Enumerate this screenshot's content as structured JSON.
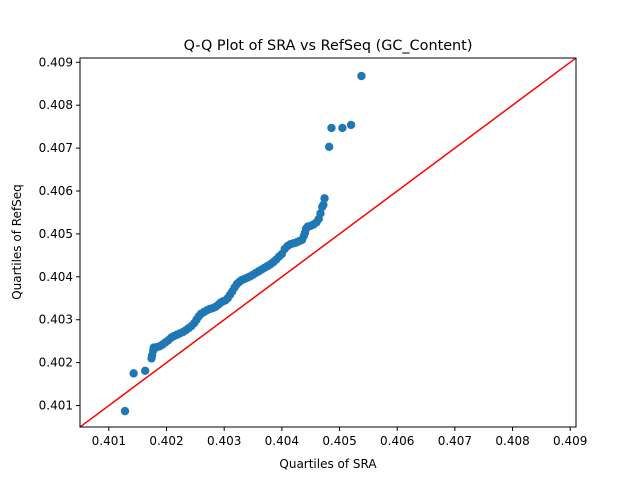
{
  "chart_data": {
    "type": "scatter",
    "title": "Q-Q Plot of SRA vs RefSeq (GC_Content)",
    "xlabel": "Quartiles of SRA",
    "ylabel": "Quartiles of RefSeq",
    "xlim": [
      0.4005,
      0.4091
    ],
    "ylim": [
      0.4005,
      0.4091
    ],
    "xticks": [
      "0.401",
      "0.402",
      "0.403",
      "0.404",
      "0.405",
      "0.406",
      "0.407",
      "0.408",
      "0.409"
    ],
    "yticks": [
      "0.401",
      "0.402",
      "0.403",
      "0.404",
      "0.405",
      "0.406",
      "0.407",
      "0.408",
      "0.409"
    ],
    "grid": false,
    "legend": "none",
    "reference_line": {
      "from": [
        0.4005,
        0.4005
      ],
      "to": [
        0.4091,
        0.4091
      ],
      "color": "#ff0000"
    },
    "marker_color": "#1f77b4",
    "points": [
      [
        0.40128,
        0.40087
      ],
      [
        0.40143,
        0.40175
      ],
      [
        0.40163,
        0.40181
      ],
      [
        0.40174,
        0.4021
      ],
      [
        0.40175,
        0.40217
      ],
      [
        0.40177,
        0.40228
      ],
      [
        0.40178,
        0.40235
      ],
      [
        0.40183,
        0.40236
      ],
      [
        0.40188,
        0.40238
      ],
      [
        0.40193,
        0.40242
      ],
      [
        0.40198,
        0.40247
      ],
      [
        0.40203,
        0.40252
      ],
      [
        0.40208,
        0.40258
      ],
      [
        0.40213,
        0.40262
      ],
      [
        0.40218,
        0.40265
      ],
      [
        0.40223,
        0.40268
      ],
      [
        0.40228,
        0.40271
      ],
      [
        0.40233,
        0.40275
      ],
      [
        0.40238,
        0.4028
      ],
      [
        0.40243,
        0.40285
      ],
      [
        0.40248,
        0.40292
      ],
      [
        0.40252,
        0.403
      ],
      [
        0.40256,
        0.40308
      ],
      [
        0.4026,
        0.40314
      ],
      [
        0.40265,
        0.40318
      ],
      [
        0.4027,
        0.40322
      ],
      [
        0.40275,
        0.40325
      ],
      [
        0.4028,
        0.40327
      ],
      [
        0.40285,
        0.4033
      ],
      [
        0.4029,
        0.40335
      ],
      [
        0.40294,
        0.4034
      ],
      [
        0.40298,
        0.40343
      ],
      [
        0.40302,
        0.40345
      ],
      [
        0.40306,
        0.4035
      ],
      [
        0.4031,
        0.40358
      ],
      [
        0.40314,
        0.40366
      ],
      [
        0.40318,
        0.40375
      ],
      [
        0.40322,
        0.40383
      ],
      [
        0.40326,
        0.40388
      ],
      [
        0.4033,
        0.40392
      ],
      [
        0.40335,
        0.40395
      ],
      [
        0.4034,
        0.40398
      ],
      [
        0.40345,
        0.40401
      ],
      [
        0.4035,
        0.40405
      ],
      [
        0.40355,
        0.40409
      ],
      [
        0.4036,
        0.40413
      ],
      [
        0.40365,
        0.40417
      ],
      [
        0.4037,
        0.40421
      ],
      [
        0.40375,
        0.40425
      ],
      [
        0.4038,
        0.40429
      ],
      [
        0.40385,
        0.40434
      ],
      [
        0.4039,
        0.4044
      ],
      [
        0.40395,
        0.40447
      ],
      [
        0.404,
        0.40453
      ],
      [
        0.40405,
        0.40465
      ],
      [
        0.4041,
        0.40472
      ],
      [
        0.40415,
        0.40476
      ],
      [
        0.4042,
        0.40478
      ],
      [
        0.40425,
        0.4048
      ],
      [
        0.4043,
        0.40483
      ],
      [
        0.40435,
        0.40486
      ],
      [
        0.40438,
        0.40495
      ],
      [
        0.4044,
        0.40502
      ],
      [
        0.40442,
        0.40512
      ],
      [
        0.40445,
        0.40517
      ],
      [
        0.4045,
        0.40519
      ],
      [
        0.40455,
        0.40522
      ],
      [
        0.4046,
        0.40527
      ],
      [
        0.40464,
        0.40535
      ],
      [
        0.40467,
        0.40548
      ],
      [
        0.4047,
        0.40563
      ],
      [
        0.40472,
        0.40568
      ],
      [
        0.40474,
        0.40583
      ],
      [
        0.40482,
        0.40703
      ],
      [
        0.40486,
        0.40747
      ],
      [
        0.40505,
        0.40747
      ],
      [
        0.4052,
        0.40754
      ],
      [
        0.40538,
        0.40868
      ]
    ]
  }
}
